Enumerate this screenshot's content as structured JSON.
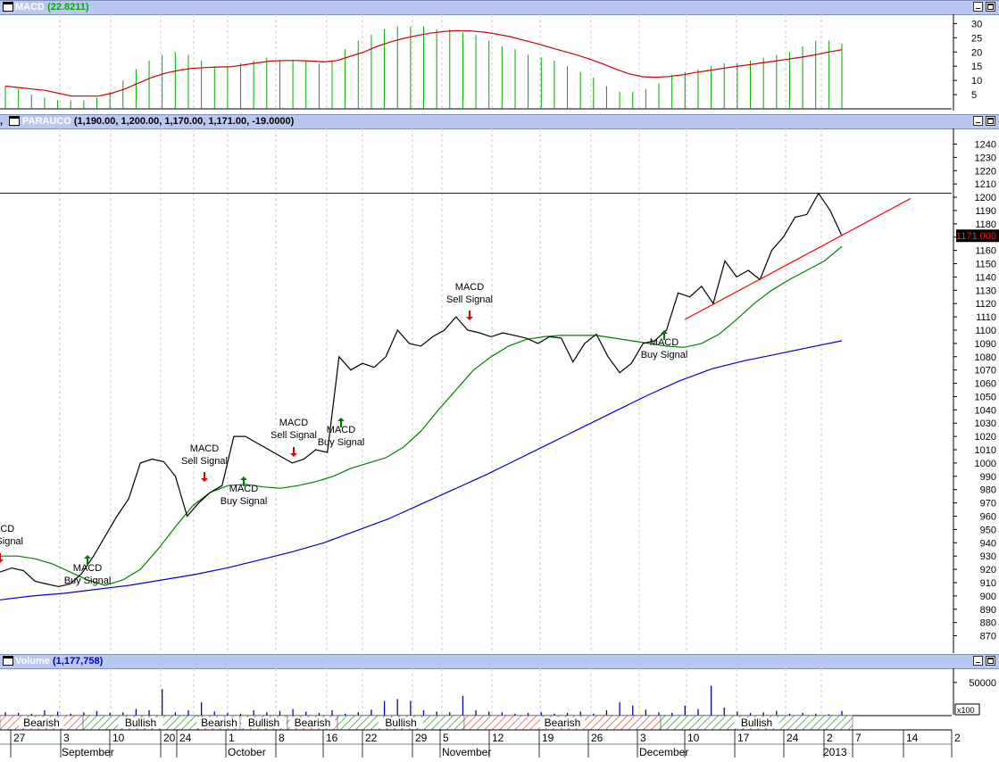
{
  "macd_pane": {
    "title": "MACD",
    "value": "(22.8211)",
    "y_ticks": [
      "30",
      "25",
      "20",
      "15",
      "10",
      "5"
    ]
  },
  "price_pane": {
    "title": "PARAUCO",
    "values": "(1,190.00, 1,200.00, 1,170.00, 1,171.00, -19.0000)",
    "last_price_label": "1171.000",
    "y_ticks": [
      "1240",
      "1230",
      "1220",
      "1210",
      "1200",
      "1190",
      "1180",
      "1170",
      "1160",
      "1150",
      "1140",
      "1130",
      "1120",
      "1110",
      "1100",
      "1090",
      "1080",
      "1070",
      "1060",
      "1050",
      "1040",
      "1030",
      "1020",
      "1010",
      "1000",
      "990",
      "980",
      "970",
      "960",
      "950",
      "940",
      "930",
      "920",
      "910",
      "900",
      "890",
      "880",
      "870"
    ]
  },
  "volume_pane": {
    "title": "Volume",
    "value": "(1,177,758)",
    "y_tick": "50000",
    "multiplier": "x100"
  },
  "sentiment_bands": [
    {
      "label": "Bearish",
      "type": "bearish"
    },
    {
      "label": "Bullish",
      "type": "bullish"
    },
    {
      "label": "Bearish",
      "type": "bearish"
    },
    {
      "label": "Bullish",
      "type": "bullish"
    },
    {
      "label": "Bearish",
      "type": "bearish"
    },
    {
      "label": "Bullish",
      "type": "bullish"
    },
    {
      "label": "Bearish",
      "type": "bearish"
    },
    {
      "label": "Bullish",
      "type": "bullish"
    }
  ],
  "x_axis": {
    "day_labels": [
      "27",
      "3",
      "10",
      "20",
      "24",
      "1",
      "8",
      "16",
      "22",
      "29",
      "5",
      "12",
      "19",
      "26",
      "3",
      "10",
      "17",
      "24",
      "2",
      "7",
      "14",
      "2"
    ],
    "month_labels": [
      "September",
      "October",
      "November",
      "December",
      "2013"
    ]
  },
  "annotations": [
    {
      "line1": "MACD",
      "line2": "Sell Signal",
      "signal": "sell"
    },
    {
      "line1": "MACD",
      "line2": "Buy Signal",
      "signal": "buy"
    },
    {
      "line1": "MACD",
      "line2": "Sell Signal",
      "signal": "sell"
    },
    {
      "line1": "MACD",
      "line2": "Buy Signal",
      "signal": "buy"
    },
    {
      "line1": "MACD",
      "line2": "Sell Signal",
      "signal": "sell"
    },
    {
      "line1": "MACD",
      "line2": "Buy Signal",
      "signal": "buy"
    },
    {
      "line1": "MACD",
      "line2": "Sell Signal",
      "signal": "sell"
    },
    {
      "line1": "MACD",
      "line2": "Buy Signal",
      "signal": "buy"
    }
  ],
  "chart_data": [
    {
      "type": "bar",
      "pane": "MACD",
      "ylim": [
        0,
        32
      ],
      "series": [
        {
          "name": "MACD",
          "color": "#00aa00",
          "values": [
            8,
            7,
            5,
            4,
            3,
            3,
            3,
            4,
            6,
            10,
            14,
            17,
            19,
            20,
            19,
            17,
            15,
            15,
            16,
            17,
            18,
            17,
            17,
            17,
            16,
            17,
            21,
            24,
            26,
            28,
            29,
            29,
            29,
            28,
            28,
            27,
            26,
            24,
            22,
            21,
            19,
            18,
            17,
            15,
            13,
            11,
            8,
            6,
            6,
            7,
            9,
            12,
            13,
            14,
            15,
            16,
            16,
            17,
            18,
            19,
            20,
            22,
            24,
            24,
            23
          ]
        },
        {
          "name": "Signal",
          "color": "#cc0000",
          "values": [
            8,
            7.5,
            7,
            6.5,
            5.5,
            4.5,
            4.5,
            4.5,
            5.5,
            7,
            9,
            11,
            12.5,
            13.5,
            14.2,
            14.5,
            14.7,
            14.8,
            15.5,
            16.2,
            16.8,
            17,
            17,
            16.8,
            16.5,
            17,
            18.5,
            20,
            22,
            23.5,
            24.8,
            25.8,
            26.6,
            27.2,
            27.5,
            27.4,
            27,
            26.3,
            25.4,
            24.2,
            23,
            21.6,
            20.3,
            19,
            17.5,
            15.8,
            13.9,
            12.3,
            11.3,
            11.1,
            11.4,
            12,
            12.8,
            13.5,
            14.2,
            14.9,
            15.5,
            16.2,
            16.8,
            17.5,
            18.2,
            19,
            20,
            20.8
          ]
        }
      ]
    },
    {
      "type": "line",
      "pane": "price",
      "ylim": [
        865,
        1248
      ],
      "series": [
        {
          "name": "Price",
          "color": "#000000",
          "values": [
            918,
            921,
            919,
            911,
            909,
            907,
            909,
            917,
            930,
            945,
            960,
            973,
            1000,
            1003,
            1001,
            990,
            960,
            970,
            978,
            983,
            1020,
            1020,
            1015,
            1010,
            1005,
            1000,
            1003,
            1010,
            1008,
            1080,
            1070,
            1075,
            1072,
            1080,
            1100,
            1090,
            1088,
            1095,
            1100,
            1110,
            1100,
            1098,
            1095,
            1098,
            1096,
            1094,
            1090,
            1095,
            1094,
            1076,
            1090,
            1097,
            1080,
            1068,
            1075,
            1090,
            1092,
            1100,
            1128,
            1125,
            1133,
            1120,
            1152,
            1140,
            1145,
            1138,
            1160,
            1170,
            1185,
            1187,
            1203,
            1190,
            1171
          ]
        },
        {
          "name": "Signal average",
          "color": "#008000",
          "values": [
            930,
            930,
            928,
            924,
            918,
            912,
            908,
            912,
            920,
            935,
            952,
            968,
            978,
            983,
            984,
            982,
            981,
            983,
            986,
            990,
            996,
            1000,
            1004,
            1012,
            1024,
            1040,
            1055,
            1070,
            1080,
            1088,
            1093,
            1095,
            1096,
            1096,
            1096,
            1094,
            1092,
            1090,
            1088,
            1087,
            1090,
            1097,
            1108,
            1120,
            1130,
            1138,
            1145,
            1152,
            1163
          ]
        },
        {
          "name": "Long average",
          "color": "#0000cc",
          "values": [
            897,
            900,
            902,
            905,
            908,
            912,
            916,
            921,
            927,
            933,
            940,
            949,
            958,
            969,
            980,
            991,
            1003,
            1015,
            1027,
            1039,
            1051,
            1062,
            1071,
            1077,
            1082,
            1087,
            1092
          ]
        },
        {
          "name": "Trendline",
          "color": "#ff0000",
          "values": [
            1108,
            1199
          ]
        }
      ]
    },
    {
      "type": "bar",
      "pane": "volume",
      "ylim": [
        0,
        70000
      ],
      "series": [
        {
          "name": "Volume",
          "color": "#0000cc",
          "values": [
            5000,
            4000,
            3000,
            8000,
            6000,
            3000,
            5000,
            7000,
            4000,
            5000,
            10000,
            8000,
            40000,
            5000,
            8000,
            20000,
            6000,
            4000,
            3000,
            8000,
            5000,
            7000,
            10000,
            6000,
            4000,
            8000,
            3000,
            5000,
            9000,
            22000,
            25000,
            22000,
            8000,
            6000,
            5000,
            30000,
            8000,
            6000,
            5000,
            3000,
            4000,
            5000,
            3000,
            4000,
            6000,
            3000,
            8000,
            20000,
            15000,
            9000,
            5000,
            4000,
            15000,
            10000,
            45000,
            12000,
            6000,
            4000,
            5000,
            7000,
            3000,
            4000,
            3000,
            2000,
            7000
          ]
        }
      ]
    }
  ]
}
